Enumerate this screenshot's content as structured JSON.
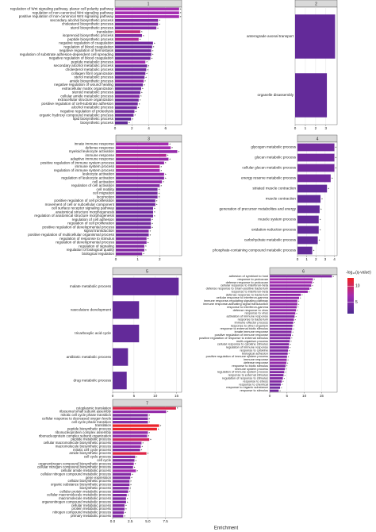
{
  "chart_data": [
    {
      "type": "bar",
      "title": "1",
      "annotation": "*",
      "categories": [
        "regulation of Wnt signaling pathway, planar cell polarity pathway",
        "regulation of non-canonical Wnt signaling pathway",
        "positive regulation of non-canonical Wnt signaling pathway",
        "secondary alcohol biosynthetic process",
        "cholesterol biosynthetic process",
        "sterol biosynthetic process",
        "translation",
        "isoprenoid biosynthetic process",
        "peptide biosynthetic process",
        "negative regulation of coagulation",
        "regulation of blood coagulation",
        "negative regulation of hemostasis",
        "regulation of substrate adhesion-dependent cell spreading",
        "negative regulation of blood coagulation",
        "peptide metabolic process",
        "secondary alcohol metabolic process",
        "cholesterol metabolic process",
        "collagen fibril organization",
        "sterol metabolic process",
        "amide biosynthetic process",
        "negative regulation of wound healing",
        "extracellular matrix organization",
        "steroid metabolic process",
        "cellular amide metabolic process",
        "extracellular structure organization",
        "positive regulation of cell-substrate adhesion",
        "alcohol metabolic process",
        "negative regulation of proteolysis",
        "organic hydroxy compound metabolic process",
        "lipid biosynthetic process",
        "biosynthetic process"
      ],
      "values": [
        7.6,
        7.6,
        7.6,
        5.1,
        5.1,
        4.9,
        3.0,
        3.2,
        2.8,
        4.5,
        4.4,
        4.3,
        4.3,
        4.2,
        3.6,
        3.8,
        3.7,
        3.6,
        3.5,
        3.4,
        3.3,
        3.1,
        3.0,
        2.9,
        2.8,
        2.7,
        2.6,
        2.3,
        2.2,
        1.9,
        1.5
      ],
      "color_values": [
        7,
        7,
        7,
        5,
        5,
        5,
        9,
        5,
        8,
        4,
        4,
        4,
        4,
        4,
        7,
        4,
        4,
        4,
        4,
        6,
        4,
        4,
        4,
        5,
        4,
        4,
        4,
        4,
        4,
        3,
        3
      ],
      "xlim": [
        0,
        7.9
      ],
      "xticks": [
        0,
        2,
        4,
        6
      ]
    },
    {
      "type": "bar",
      "title": "2",
      "categories": [
        "anterograde axonal transport",
        "organelle disassembly"
      ],
      "values": [
        3.9,
        3.1
      ],
      "color_values": [
        3,
        3
      ],
      "xlim": [
        0,
        4.1
      ],
      "xticks": [
        0,
        1,
        2,
        3
      ]
    },
    {
      "type": "bar",
      "title": "3",
      "annotation": "*",
      "categories": [
        "innate immune response",
        "defense response",
        "myeloid leukocyte activation",
        "immune response",
        "adaptive immune response",
        "positive regulation of immune system process",
        "immune system process",
        "regulation of immune system process",
        "leukocyte activation",
        "regulation of leukocyte activation",
        "cell activation",
        "regulation of cell activation",
        "cell motility",
        "cell migration",
        "locomotion",
        "positive regulation of cell proliferation",
        "movement of cell or subcellular component",
        "cell surface receptor signaling pathway",
        "anatomical structure morphogenesis",
        "regulation of anatomical structure morphogenesis",
        "regulation of cell adhesion",
        "regulation of cell proliferation",
        "positive regulation of developmental process",
        "signal transduction",
        "positive regulation of multicellular organismal process",
        "regulation of response to stimulus",
        "regulation of developmental process",
        "regulation of signaling",
        "regulation of biological quality",
        "biological regulation"
      ],
      "values": [
        2.4,
        2.5,
        2.8,
        2.3,
        2.4,
        2.2,
        2.0,
        2.0,
        2.2,
        2.2,
        2.1,
        2.0,
        1.9,
        1.9,
        1.9,
        1.8,
        1.8,
        1.7,
        1.7,
        1.7,
        1.6,
        1.6,
        1.6,
        1.5,
        1.5,
        1.4,
        1.4,
        1.3,
        1.3,
        1.2
      ],
      "color_values": [
        7,
        7,
        6,
        8,
        6,
        6,
        8,
        7,
        6,
        5,
        6,
        5,
        4,
        4,
        4,
        4,
        4,
        4,
        4,
        4,
        4,
        4,
        4,
        5,
        4,
        5,
        5,
        5,
        5,
        5
      ],
      "xlim": [
        0,
        3.0
      ],
      "xticks": [
        0,
        1,
        2
      ]
    },
    {
      "type": "bar",
      "title": "4",
      "annotation": "*",
      "categories": [
        "glycogen metabolic process",
        "glucan metabolic process",
        "cellular glucan metabolic process",
        "energy reserve metabolic process",
        "striated muscle contraction",
        "muscle contraction",
        "generation of precursor metabolites and energy",
        "muscle system process",
        "oxidation-reduction process",
        "carbohydrate metabolic process",
        "phosphate-containing compound metabolic process"
      ],
      "values": [
        4.0,
        4.0,
        4.0,
        3.6,
        3.2,
        2.5,
        2.4,
        2.3,
        2.3,
        2.2,
        1.6
      ],
      "color_values": [
        4,
        4,
        4,
        4,
        3,
        3,
        3,
        3,
        3,
        3,
        3
      ],
      "xlim": [
        0,
        4.3
      ],
      "xticks": [
        0,
        1,
        2,
        3,
        4
      ]
    },
    {
      "type": "bar",
      "title": "5",
      "categories": [
        "malate metabolic process",
        "vasculature development",
        "tricarboxylic acid cycle",
        "antibiotic metabolic process",
        "drug metabolic process"
      ],
      "values": [
        15.5,
        6.2,
        6.2,
        3.6,
        3.3
      ],
      "color_values": [
        3,
        3,
        3,
        3,
        3
      ],
      "xlim": [
        0,
        16.2
      ],
      "xticks": [
        0,
        5,
        10,
        15
      ]
    },
    {
      "type": "bar",
      "title": "6",
      "annotation": "*",
      "categories": [
        "adhesion of symbiont to host",
        "response to protozoan",
        "defense response to protozoan",
        "cellular response to interferon-beta",
        "defense response to Gram-positive bacterium",
        "response to interferon-beta",
        "defense response to bacterium",
        "cellular response to interferon-gamma",
        "immune response-regulating signaling pathway",
        "immune response-activating signal transduction",
        "response to interferon-gamma",
        "defense response to virus",
        "response to virus",
        "activation of immune response",
        "response to bacterium",
        "immune effector process",
        "response to other organism",
        "response to external biotic stimulus",
        "innate immune response",
        "positive regulation of immune response",
        "positive regulation of response to external stimulus",
        "multi-organism process",
        "cellular response to cytokine stimulus",
        "regulation of immune response",
        "response to cytokine",
        "biological adhesion",
        "positive regulation of immune system process",
        "immune response",
        "defense response",
        "response to biotic stimulus",
        "immune system process",
        "regulation of immune system process",
        "response to external stimulus",
        "regulation of response to stimulus",
        "response to stress",
        "response to chemical",
        "response to organic substance",
        "response to stimulus"
      ],
      "values": [
        18,
        12.5,
        12.3,
        12,
        11.5,
        11,
        9,
        8.5,
        8,
        8,
        7.8,
        7.6,
        7.4,
        7.2,
        7,
        6.8,
        6.6,
        6.5,
        6.3,
        6.2,
        6,
        5.8,
        5.6,
        5.5,
        5.3,
        5.2,
        5,
        4.9,
        4.8,
        4.6,
        4.4,
        4.2,
        4,
        3.8,
        3.5,
        3.2,
        3,
        2.6
      ],
      "color_values": [
        5,
        7,
        7,
        6,
        6,
        6,
        6,
        6,
        6,
        6,
        6,
        6,
        6,
        5,
        6,
        5,
        5,
        5,
        5,
        5,
        5,
        5,
        5,
        5,
        5,
        5,
        5,
        6,
        6,
        5,
        5,
        5,
        5,
        5,
        5,
        4,
        4,
        4
      ],
      "xlim": [
        0,
        19.5
      ],
      "xticks": [
        0,
        5,
        10,
        15
      ]
    },
    {
      "type": "bar",
      "title": "7",
      "annotation": "*",
      "categories": [
        "cytoplasmic translation",
        "ribosomal small subunit assembly",
        "mitotic cell cycle phase transition",
        "cellular response to decreased oxygen levels",
        "cell cycle phase transition",
        "translation",
        "peptide biosynthetic process",
        "ribonucleoprotein complex assembly",
        "ribonucleoprotein complex subunit organization",
        "peptide metabolic process",
        "cellular macromolecule biosynthetic process",
        "macromolecule biosynthetic process",
        "mitotic cell cycle process",
        "amide biosynthetic process",
        "cell cycle process",
        "cell cycle",
        "organonitrogen compound biosynthetic process",
        "cellular nitrogen compound biosynthetic process",
        "cellular amide metabolic process",
        "cellular nitrogen compound metabolic process",
        "gene expression",
        "cellular biosynthetic process",
        "organic substance biosynthetic process",
        "biosynthetic process",
        "cellular protein metabolic process",
        "cellular macromolecule metabolic process",
        "macromolecule metabolic process",
        "organonitrogen compound metabolic process",
        "cellular metabolic process",
        "protein metabolic process",
        "nitrogen compound metabolic process",
        "primary metabolic process"
      ],
      "values": [
        9.0,
        7.6,
        5.0,
        5.0,
        5.0,
        6.6,
        6.3,
        5.0,
        4.9,
        5.2,
        4.1,
        4.0,
        3.9,
        4.8,
        3.2,
        3.1,
        3.0,
        2.9,
        3.3,
        2.6,
        2.5,
        2.4,
        2.4,
        2.3,
        2.2,
        2.0,
        1.9,
        1.9,
        1.7,
        1.7,
        1.6,
        1.5
      ],
      "color_values": [
        11,
        6,
        5,
        5,
        5,
        12,
        12,
        6,
        6,
        10,
        6,
        6,
        5,
        11,
        5,
        5,
        6,
        5,
        7,
        5,
        5,
        5,
        5,
        5,
        5,
        5,
        5,
        5,
        5,
        5,
        5,
        5
      ],
      "xlim": [
        0,
        9.8
      ],
      "xticks": [
        {
          "value": 0,
          "label": "0.0"
        },
        {
          "value": 2.5,
          "label": "2.5"
        },
        {
          "value": 5,
          "label": "5.0"
        },
        {
          "value": 7.5,
          "label": "7.5"
        }
      ]
    }
  ],
  "xlabel": "Enrichment",
  "colorbar": {
    "title": "-log₁₀(q-value)",
    "lim": [
      1.5,
      12.5
    ],
    "ticks": [
      5,
      10
    ],
    "colors": [
      "#4b2991",
      "#a42cb0",
      "#f2231f"
    ]
  }
}
